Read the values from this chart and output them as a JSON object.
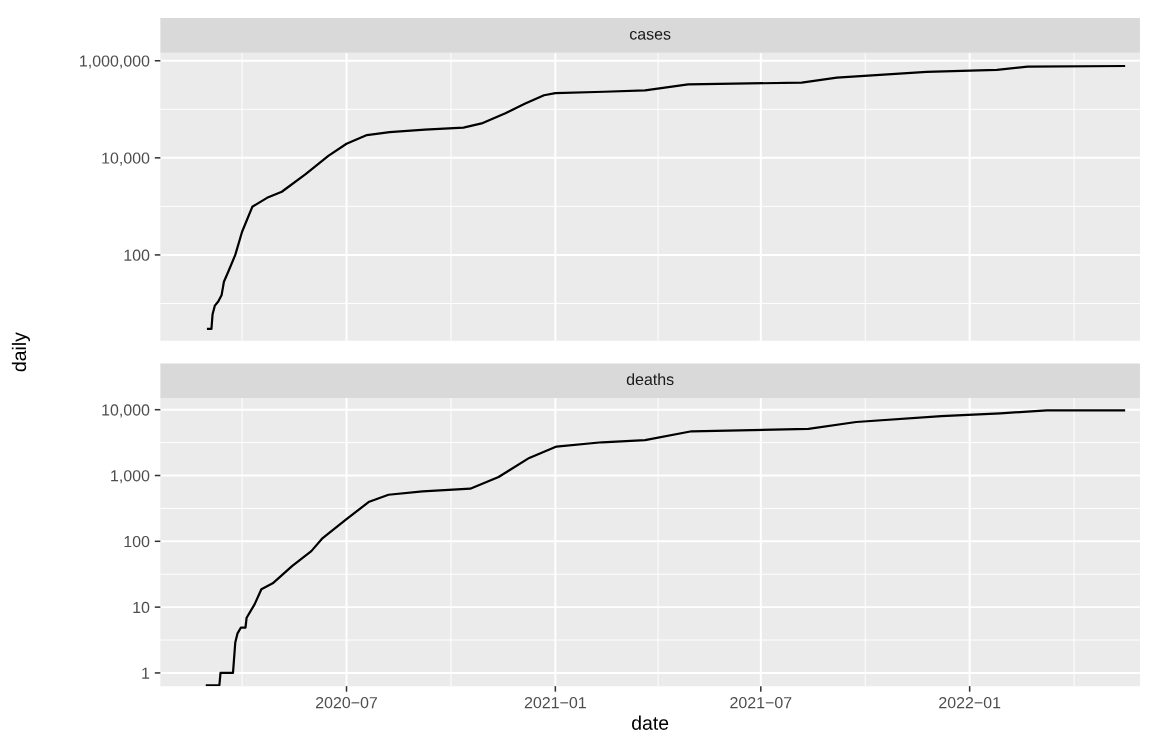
{
  "chart_data": [
    {
      "type": "line",
      "title": "cases",
      "ylabel": "daily",
      "log": "y",
      "grid": true,
      "legend": false,
      "tick_labels": "y",
      "xlim": [
        "2020-01-19",
        "2022-05-31"
      ],
      "ylim": [
        1.7,
        1460000
      ],
      "xticks": [
        {
          "value": "2020-07-01",
          "label": null
        },
        {
          "value": "2021-01-01",
          "label": null
        },
        {
          "value": "2021-07-01",
          "label": null
        },
        {
          "value": "2022-01-01",
          "label": null
        }
      ],
      "yticks": [
        {
          "value": 100,
          "label": "100"
        },
        {
          "value": 10000,
          "label": "10,000"
        },
        {
          "value": 1000000,
          "label": "1,000,000"
        }
      ],
      "series": [
        {
          "color": "#000000",
          "x": [
            "2020-03-01",
            "2020-03-04",
            "2020-03-05",
            "2020-03-07",
            "2020-03-10",
            "2020-03-13",
            "2020-03-15",
            "2020-03-19",
            "2020-03-25",
            "2020-03-31",
            "2020-04-09",
            "2020-04-22",
            "2020-05-05",
            "2020-05-26",
            "2020-06-15",
            "2020-07-01",
            "2020-07-19",
            "2020-08-08",
            "2020-09-08",
            "2020-10-12",
            "2020-10-29",
            "2020-11-18",
            "2020-12-05",
            "2020-12-22",
            "2021-01-01",
            "2021-02-13",
            "2021-03-21",
            "2021-04-28",
            "2021-08-06",
            "2021-09-06",
            "2021-10-07",
            "2021-11-24",
            "2022-01-25",
            "2022-02-21",
            "2022-05-17"
          ],
          "values": [
            3,
            3,
            6,
            9,
            11,
            15,
            28,
            46,
            100,
            300,
            980,
            1500,
            2000,
            4600,
            11000,
            19500,
            29500,
            34000,
            38000,
            42000,
            52000,
            83000,
            130000,
            195000,
            215000,
            230000,
            245000,
            325000,
            355000,
            450000,
            500000,
            590000,
            650000,
            760000,
            780000
          ]
        }
      ]
    },
    {
      "type": "line",
      "title": "deaths",
      "xlabel": "date",
      "log": "y",
      "grid": true,
      "legend": false,
      "xlim": [
        "2020-01-19",
        "2022-05-31"
      ],
      "ylim": [
        0.63,
        15000
      ],
      "xticks": [
        {
          "value": "2020-07-01",
          "label": "2020−07"
        },
        {
          "value": "2021-01-01",
          "label": "2021−01"
        },
        {
          "value": "2021-07-01",
          "label": "2021−07"
        },
        {
          "value": "2022-01-01",
          "label": "2022−01"
        }
      ],
      "yticks": [
        {
          "value": 1,
          "label": "1"
        },
        {
          "value": 10,
          "label": "10"
        },
        {
          "value": 100,
          "label": "100"
        },
        {
          "value": 1000,
          "label": "1,000"
        },
        {
          "value": 10000,
          "label": "10,000"
        }
      ],
      "series": [
        {
          "color": "#000000",
          "x": [
            "2020-02-29",
            "2020-03-11",
            "2020-03-12",
            "2020-03-23",
            "2020-03-25",
            "2020-03-27",
            "2020-03-30",
            "2020-04-03",
            "2020-04-04",
            "2020-04-11",
            "2020-04-17",
            "2020-04-27",
            "2020-05-14",
            "2020-05-31",
            "2020-06-10",
            "2020-07-01",
            "2020-07-21",
            "2020-08-07",
            "2020-09-06",
            "2020-10-18",
            "2020-11-12",
            "2020-12-09",
            "2021-01-02",
            "2021-02-11",
            "2021-03-21",
            "2021-05-01",
            "2021-08-12",
            "2021-09-23",
            "2021-12-07",
            "2022-01-28",
            "2022-03-10",
            "2022-05-17"
          ],
          "values": [
            0.65,
            0.65,
            1,
            1,
            2.9,
            4,
            4.9,
            4.9,
            6.9,
            11,
            18.7,
            23,
            42,
            71,
            112,
            218,
            400,
            510,
            575,
            630,
            950,
            1850,
            2750,
            3200,
            3450,
            4700,
            5100,
            6500,
            8000,
            8800,
            9800,
            9800
          ]
        }
      ]
    }
  ]
}
